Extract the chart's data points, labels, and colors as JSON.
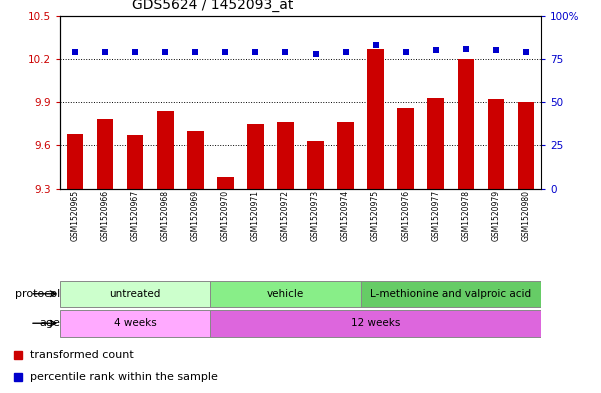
{
  "title": "GDS5624 / 1452093_at",
  "samples": [
    "GSM1520965",
    "GSM1520966",
    "GSM1520967",
    "GSM1520968",
    "GSM1520969",
    "GSM1520970",
    "GSM1520971",
    "GSM1520972",
    "GSM1520973",
    "GSM1520974",
    "GSM1520975",
    "GSM1520976",
    "GSM1520977",
    "GSM1520978",
    "GSM1520979",
    "GSM1520980"
  ],
  "transformed_count": [
    9.68,
    9.78,
    9.67,
    9.84,
    9.7,
    9.38,
    9.75,
    9.76,
    9.63,
    9.76,
    10.27,
    9.86,
    9.93,
    10.2,
    9.92,
    9.9
  ],
  "percentile_rank": [
    79,
    79,
    79,
    79,
    79,
    79,
    79,
    79,
    78,
    79,
    83,
    79,
    80,
    81,
    80,
    79
  ],
  "ylim_left": [
    9.3,
    10.5
  ],
  "ylim_right": [
    0,
    100
  ],
  "yticks_left": [
    9.3,
    9.6,
    9.9,
    10.2,
    10.5
  ],
  "yticks_right": [
    0,
    25,
    50,
    75,
    100
  ],
  "bar_color": "#cc0000",
  "dot_color": "#0000cc",
  "protocol_groups": [
    {
      "label": "untreated",
      "start": 0,
      "end": 4,
      "color": "#ccffcc"
    },
    {
      "label": "vehicle",
      "start": 5,
      "end": 9,
      "color": "#88ee88"
    },
    {
      "label": "L-methionine and valproic acid",
      "start": 10,
      "end": 15,
      "color": "#66cc66"
    }
  ],
  "age_groups": [
    {
      "label": "4 weeks",
      "start": 0,
      "end": 4,
      "color": "#ffaaff"
    },
    {
      "label": "12 weeks",
      "start": 5,
      "end": 15,
      "color": "#dd66dd"
    }
  ],
  "legend_items": [
    {
      "label": "transformed count",
      "color": "#cc0000"
    },
    {
      "label": "percentile rank within the sample",
      "color": "#0000cc"
    }
  ]
}
